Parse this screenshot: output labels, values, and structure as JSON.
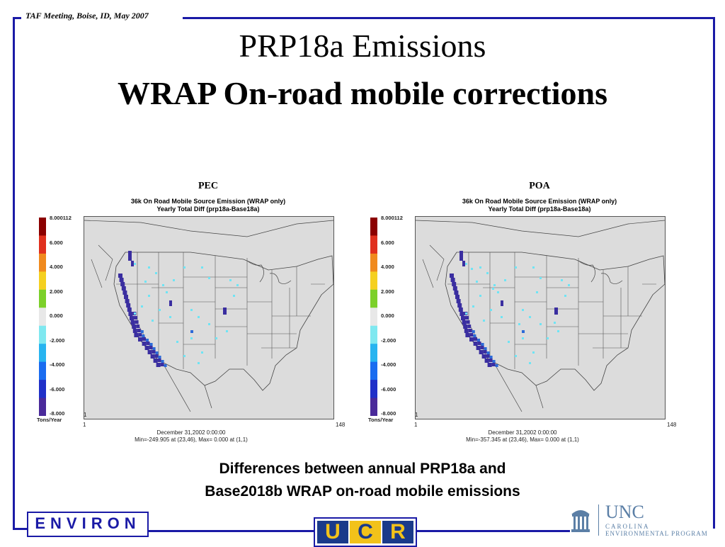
{
  "header": {
    "meeting_tag": "TAF Meeting, Boise, ID, May 2007",
    "title_line1": "PRP18a Emissions",
    "title_line2": "WRAP On-road mobile corrections"
  },
  "panels": [
    {
      "title": "PEC",
      "subtitle1": "36k On Road Mobile Source Emission (WRAP only)",
      "subtitle2": "Yearly Total Diff (prp18a-Base18a)",
      "colorbar_labels": [
        "8.000112",
        "6.000",
        "4.000",
        "2.000",
        "0.000",
        "-2.000",
        "-4.000",
        "-6.000",
        "-8.000"
      ],
      "units": "Tons/Year",
      "x_axis_left": "1",
      "x_axis_right": "148",
      "y_axis_bottom": "1",
      "date": "December 31,2002 0:00:00",
      "minmax": "Min=-249.905 at (23,46), Max=   0.000 at (1,1)"
    },
    {
      "title": "POA",
      "subtitle1": "36k On Road Mobile Source Emission (WRAP only)",
      "subtitle2": "Yearly Total Diff (prp18a-Base18a)",
      "colorbar_labels": [
        "8.000112",
        "6.000",
        "4.000",
        "2.000",
        "0.000",
        "-2.000",
        "-4.000",
        "-6.000",
        "-8.000"
      ],
      "units": "Tons/Year",
      "x_axis_left": "1",
      "x_axis_right": "148",
      "y_axis_bottom": "1",
      "date": "December 31,2002 0:00:00",
      "minmax": "Min=-357.345 at (23,46), Max=   0.000 at (1,1)"
    }
  ],
  "colorbar_colors": [
    "#8b0000",
    "#e0301e",
    "#f08a1e",
    "#f5d020",
    "#7cd02a",
    "#e8e8e8",
    "#7fe8f0",
    "#28b4f0",
    "#1a6cf0",
    "#2030c8",
    "#4a2a9a"
  ],
  "caption": {
    "line1": "Differences between annual PRP18a and",
    "line2": "Base2018b WRAP on-road mobile emissions"
  },
  "logos": {
    "environ": "ENVIRON",
    "ucr_letters": [
      "U",
      "C",
      "R"
    ],
    "unc_main": "UNC",
    "unc_line1": "CAROLINA",
    "unc_line2": "ENVIRONMENTAL PROGRAM"
  },
  "colors": {
    "frame": "#1a1aa6",
    "map_bg": "#dcdcdc",
    "emission_dark": "#3a2ea0",
    "emission_cyan": "#6fe4f4"
  }
}
